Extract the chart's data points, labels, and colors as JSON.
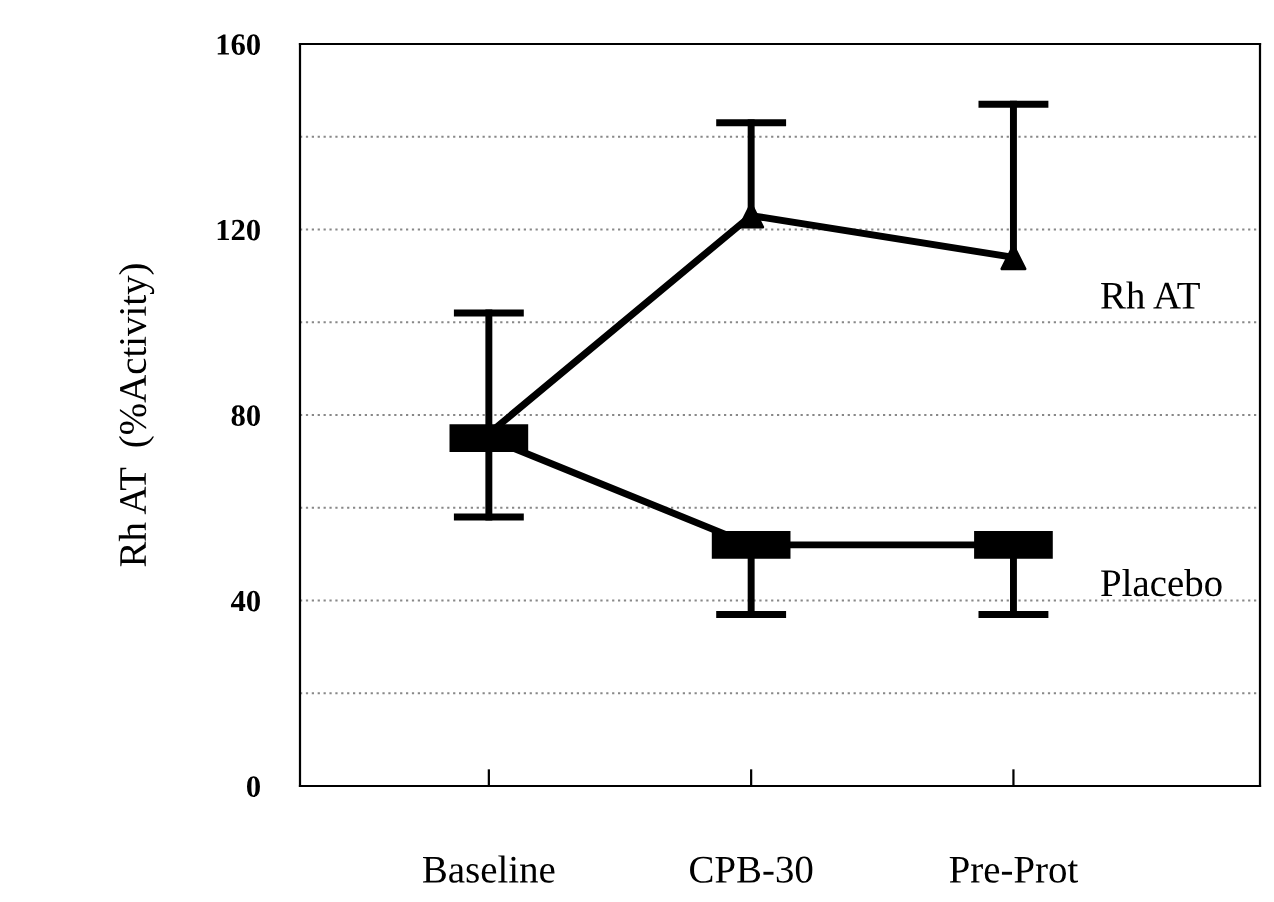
{
  "chart_data": {
    "type": "line",
    "ylabel": "Rh AT  (%Activity)",
    "categories": [
      "Baseline",
      "CPB-30",
      "Pre-Prot"
    ],
    "series": [
      {
        "name": "Rh AT",
        "color": "#000000",
        "marker": "triangle",
        "values": [
          76,
          123,
          114
        ],
        "errors": [
          [
            76,
            102
          ],
          [
            123,
            143
          ],
          [
            114,
            147
          ]
        ]
      },
      {
        "name": "Placebo",
        "color": "#000000",
        "marker": "square",
        "values": [
          75,
          52,
          52
        ],
        "errors": [
          [
            58,
            75
          ],
          [
            37,
            52
          ],
          [
            37,
            52
          ]
        ]
      }
    ],
    "ylim": [
      0,
      160
    ],
    "yticks": [
      0,
      {
        "value": 20,
        "label": null
      },
      40,
      {
        "value": 60,
        "label": null
      },
      80,
      {
        "value": 100,
        "label": null
      },
      120,
      {
        "value": 140,
        "label": null
      },
      160
    ],
    "grid": "y",
    "legend": false,
    "line_style": "solid"
  }
}
